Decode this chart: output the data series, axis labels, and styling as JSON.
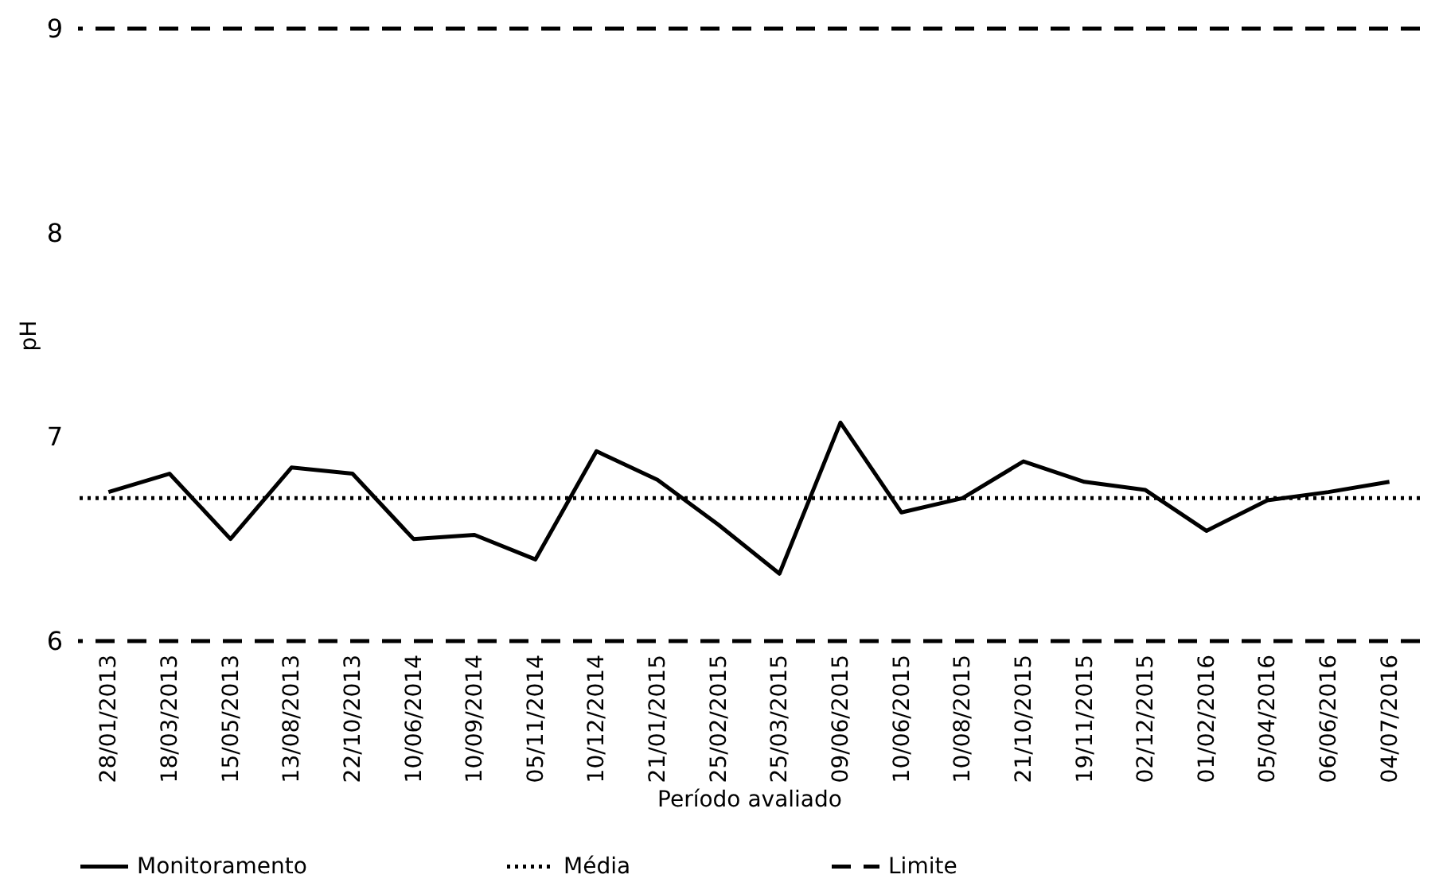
{
  "chart_data": {
    "type": "line",
    "xlabel": "Período avaliado",
    "ylabel": "pH",
    "categories": [
      "28/01/2013",
      "18/03/2013",
      "15/05/2013",
      "13/08/2013",
      "22/10/2013",
      "10/06/2014",
      "10/09/2014",
      "05/11/2014",
      "10/12/2014",
      "21/01/2015",
      "25/02/2015",
      "25/03/2015",
      "09/06/2015",
      "10/06/2015",
      "10/08/2015",
      "21/10/2015",
      "19/11/2015",
      "02/12/2015",
      "01/02/2016",
      "05/04/2016",
      "06/06/2016",
      "04/07/2016"
    ],
    "series": [
      {
        "name": "Monitoramento",
        "color": "#000000",
        "line_style": "solid",
        "values": [
          6.73,
          6.82,
          6.5,
          6.85,
          6.82,
          6.5,
          6.52,
          6.4,
          6.93,
          6.79,
          6.57,
          6.33,
          7.07,
          6.63,
          6.7,
          6.88,
          6.78,
          6.74,
          6.54,
          6.69,
          6.73,
          6.78
        ]
      }
    ],
    "ref_lines": [
      {
        "axis": "y",
        "value": 6.7,
        "label": "Média",
        "color": "#000000",
        "line_style": "dotted"
      },
      {
        "axis": "y",
        "value": 9,
        "label": "Limite",
        "color": "#000000",
        "line_style": "dashed"
      },
      {
        "axis": "y",
        "value": 6,
        "color": "#000000",
        "line_style": "dashed"
      }
    ],
    "ylim": [
      6,
      9
    ],
    "yticks": [
      6,
      7,
      8,
      9
    ],
    "grid": false,
    "legend": "bottom",
    "marker": "none"
  }
}
